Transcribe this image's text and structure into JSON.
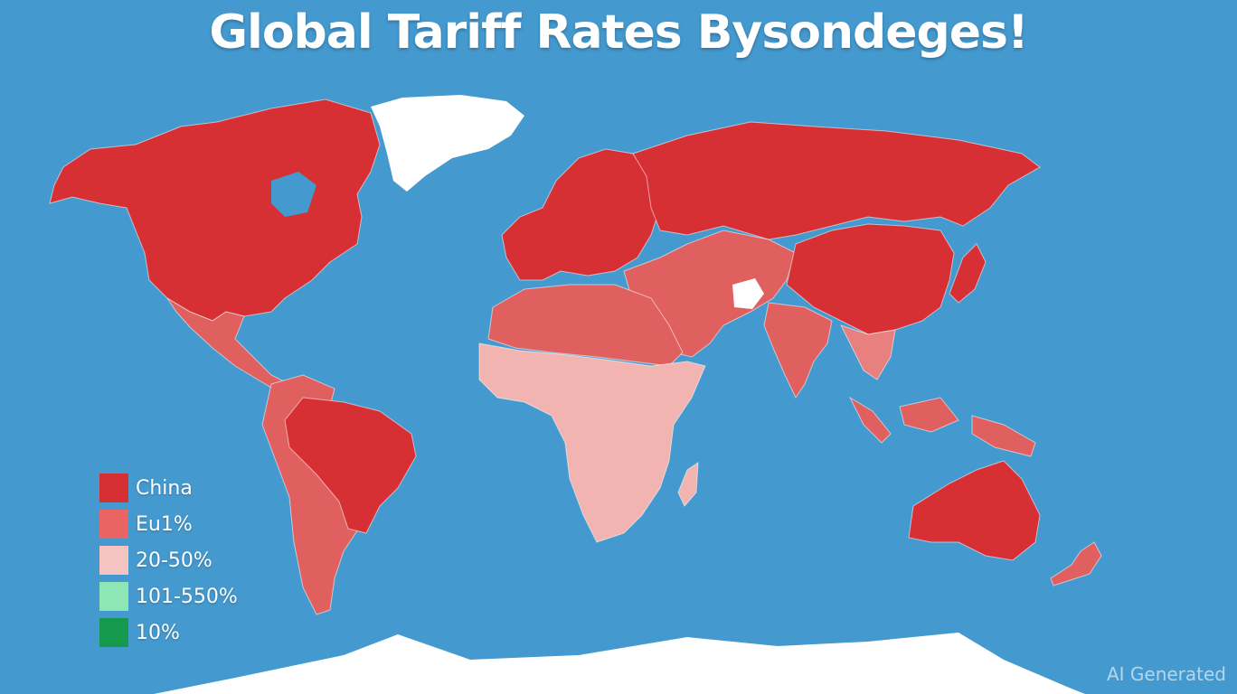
{
  "title": "Global Tariff Rates Bysondeges!",
  "colors": {
    "ocean": "#4499cf",
    "ice": "#ffffff",
    "dark_red": "#d63035",
    "mid_red": "#e06060",
    "light_red": "#f2b8b4",
    "pale": "#f4c8c4",
    "mint": "#8ee6b4",
    "green": "#159a4d"
  },
  "legend": [
    {
      "label": "China",
      "color": "#d63035"
    },
    {
      "label": "Eu1%",
      "color": "#ea6464"
    },
    {
      "label": "20-50%",
      "color": "#f4c4c0"
    },
    {
      "label": "101-550%",
      "color": "#8ee6b4"
    },
    {
      "label": "10%",
      "color": "#159a4d"
    }
  ],
  "regions": [
    {
      "name": "north-america",
      "tier": "China"
    },
    {
      "name": "greenland",
      "tier": "none"
    },
    {
      "name": "mexico-central-america",
      "tier": "Eu1%"
    },
    {
      "name": "brazil",
      "tier": "China"
    },
    {
      "name": "south-america-west",
      "tier": "Eu1%"
    },
    {
      "name": "europe",
      "tier": "China"
    },
    {
      "name": "russia",
      "tier": "China"
    },
    {
      "name": "china",
      "tier": "China"
    },
    {
      "name": "middle-east-central-asia",
      "tier": "Eu1%"
    },
    {
      "name": "north-africa",
      "tier": "Eu1%"
    },
    {
      "name": "sub-saharan-africa",
      "tier": "20-50%"
    },
    {
      "name": "india",
      "tier": "Eu1%"
    },
    {
      "name": "southeast-asia",
      "tier": "Eu1%"
    },
    {
      "name": "japan",
      "tier": "China"
    },
    {
      "name": "australia",
      "tier": "China"
    },
    {
      "name": "new-zealand",
      "tier": "Eu1%"
    },
    {
      "name": "antarctica",
      "tier": "none"
    }
  ],
  "watermark": "AI Generated"
}
